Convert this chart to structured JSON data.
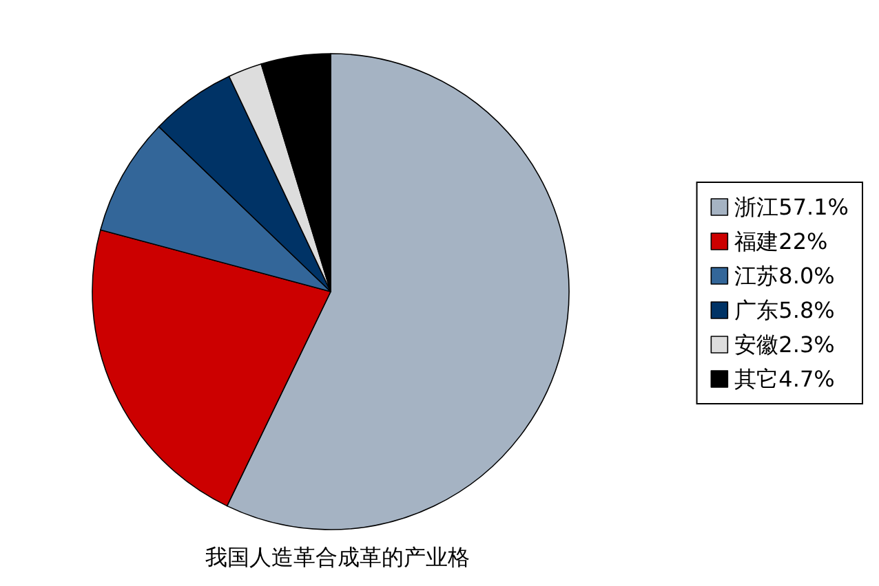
{
  "chart_data": {
    "type": "pie",
    "title": "我国人造革合成革的产业格",
    "categories": [
      "浙江57.1%",
      "福建22%",
      "江苏8.0%",
      "广东5.8%",
      "安徽2.3%",
      "其它4.7%"
    ],
    "values": [
      57.1,
      22,
      8.0,
      5.8,
      2.3,
      4.7
    ],
    "colors": [
      "#a5b3c3",
      "#cc0000",
      "#336699",
      "#003366",
      "#dddddd",
      "#000000"
    ],
    "legend": "right"
  }
}
